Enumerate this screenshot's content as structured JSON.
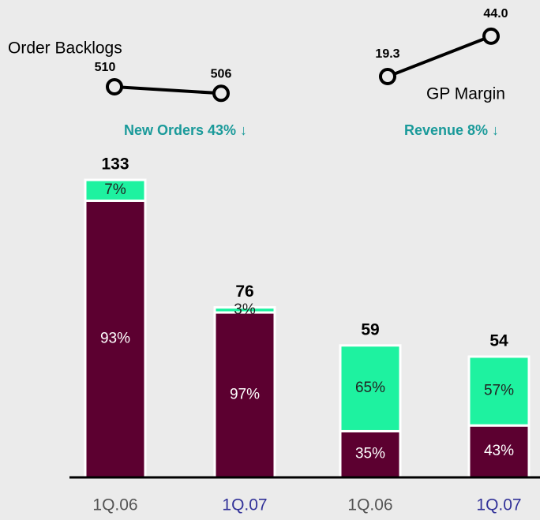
{
  "chart_data": [
    {
      "type": "bar",
      "categories": [
        "1Q.06",
        "1Q.07",
        "1Q.06",
        "1Q.07"
      ],
      "category_colors": [
        "#555555",
        "#333399",
        "#555555",
        "#333399"
      ],
      "totals": [
        133,
        76,
        59,
        54
      ],
      "series": [
        {
          "color": "#5c0030",
          "values": [
            93,
            97,
            35,
            43
          ],
          "value_labels": [
            "93%",
            "97%",
            "35%",
            "43%"
          ]
        },
        {
          "color": "#1ef2a0",
          "values": [
            7,
            3,
            65,
            57
          ],
          "value_labels": [
            "7%",
            "3%",
            "65%",
            "57%"
          ]
        }
      ],
      "annotations": [
        "New Orders 43% ↓",
        "Revenue 8% ↓"
      ],
      "annotation_color": "#1a9a9a"
    },
    {
      "type": "line",
      "title": "Order Backlogs",
      "values": [
        510,
        506
      ]
    },
    {
      "type": "line",
      "title": "GP Margin",
      "values": [
        19.3,
        44.0
      ],
      "value_labels": [
        "19.3",
        "44.0"
      ]
    }
  ]
}
